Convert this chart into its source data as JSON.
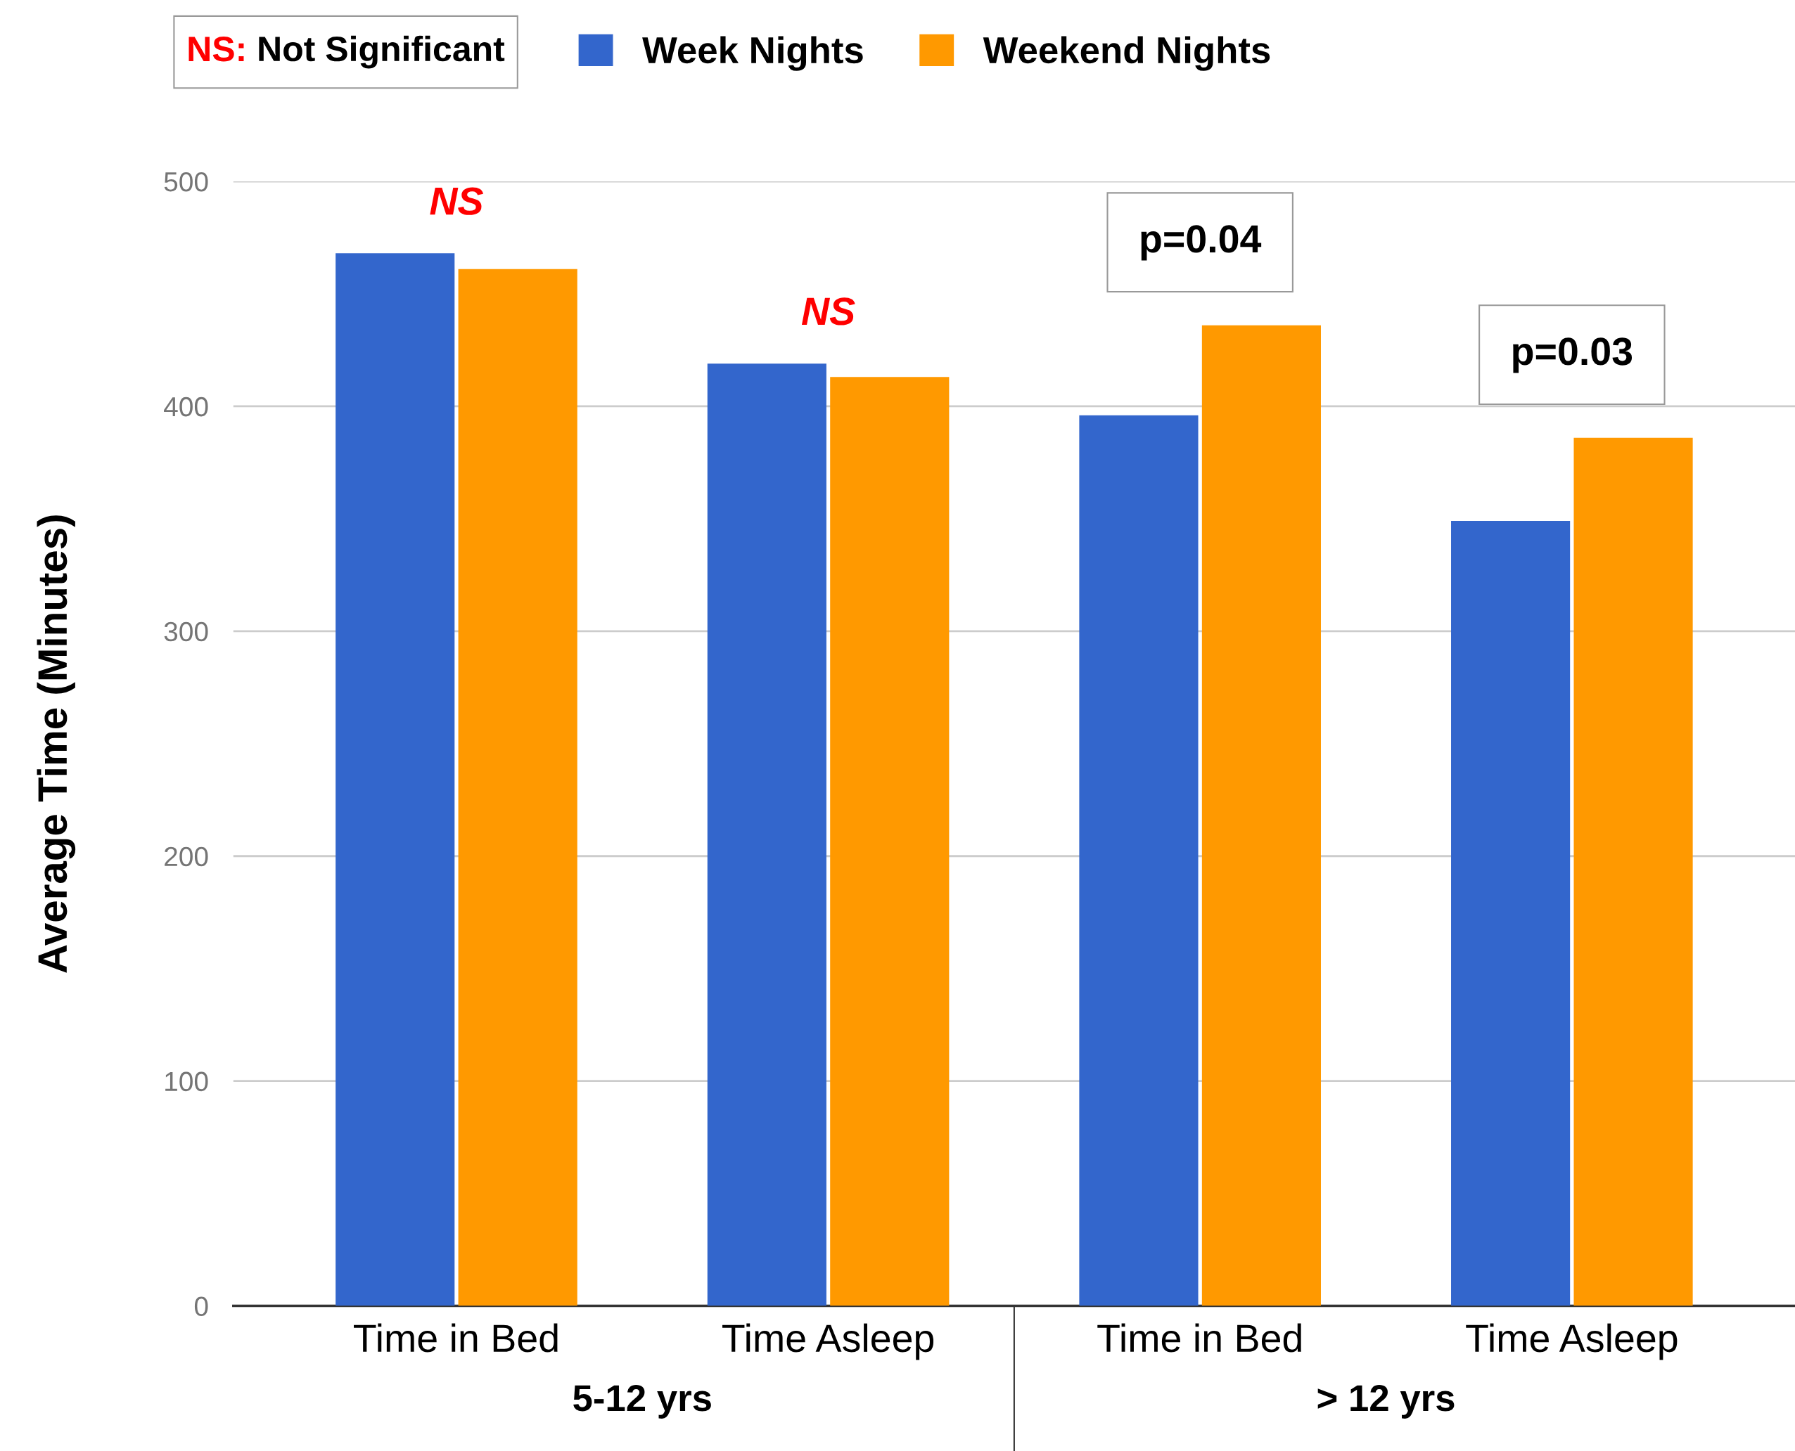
{
  "chart_data": {
    "type": "bar",
    "ylabel": "Average Time (Minutes)",
    "categories": [
      "Time in Bed",
      "Time Asleep",
      "Time in Bed",
      "Time Asleep"
    ],
    "series": [
      {
        "name": "Week Nights",
        "color": "#3366cc",
        "values": [
          468,
          419,
          396,
          349
        ]
      },
      {
        "name": "Weekend Nights",
        "color": "#ff9900",
        "values": [
          461,
          413,
          436,
          386
        ]
      }
    ],
    "ylim": [
      0,
      500
    ],
    "yticks": [
      0,
      100,
      200,
      300,
      400,
      500
    ],
    "grid": "y",
    "legend": "top left",
    "annotations": [
      "NS: Not Significant",
      "5-12 yrs",
      "> 12 yrs",
      "NS",
      "NS",
      "p=0.04",
      "p=0.03"
    ]
  }
}
